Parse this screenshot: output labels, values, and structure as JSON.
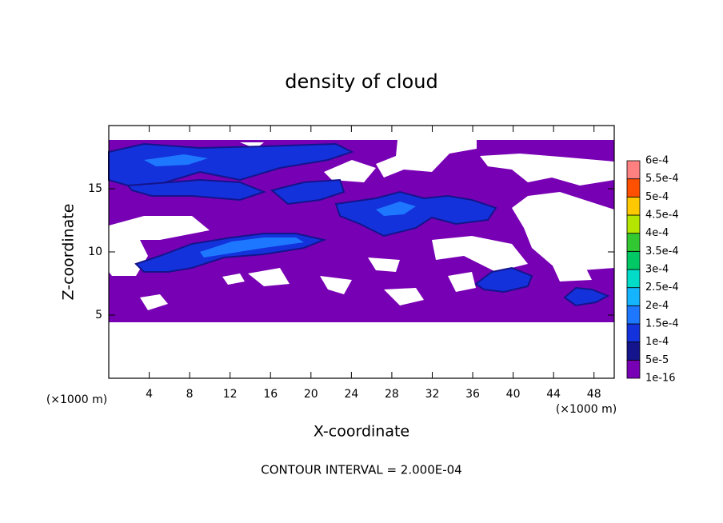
{
  "chart_data": {
    "type": "contour",
    "title": "density of cloud",
    "x_label": "X-coordinate",
    "y_label": "Z-coordinate",
    "unit_label": "(×1000 m)",
    "footer": "CONTOUR INTERVAL = 2.000E-04",
    "xlim": [
      0,
      50
    ],
    "xticks": [
      4,
      8,
      12,
      16,
      20,
      24,
      28,
      32,
      36,
      40,
      44,
      48
    ],
    "ylim": [
      0,
      20
    ],
    "yticks": [
      5,
      10,
      15
    ],
    "colorbar": {
      "levels": [
        {
          "value": 1e-16,
          "label": "1e-16"
        },
        {
          "value": 5e-05,
          "label": "5e-5"
        },
        {
          "value": 0.0001,
          "label": "1e-4"
        },
        {
          "value": 0.00015,
          "label": "1.5e-4"
        },
        {
          "value": 0.0002,
          "label": "2e-4"
        },
        {
          "value": 0.00025,
          "label": "2.5e-4"
        },
        {
          "value": 0.0003,
          "label": "3e-4"
        },
        {
          "value": 0.00035,
          "label": "3.5e-4"
        },
        {
          "value": 0.0004,
          "label": "4e-4"
        },
        {
          "value": 0.00045,
          "label": "4.5e-4"
        },
        {
          "value": 0.0005,
          "label": "5e-4"
        },
        {
          "value": 0.00055,
          "label": "5.5e-4"
        },
        {
          "value": 0.0006,
          "label": "6e-4"
        }
      ],
      "colors": [
        "#7800b4",
        "#14148c",
        "#1432dc",
        "#1e78ff",
        "#14b4ff",
        "#00dcc8",
        "#00c864",
        "#32c832",
        "#b4e600",
        "#ffc800",
        "#ff5000",
        "#ff8080"
      ]
    }
  }
}
